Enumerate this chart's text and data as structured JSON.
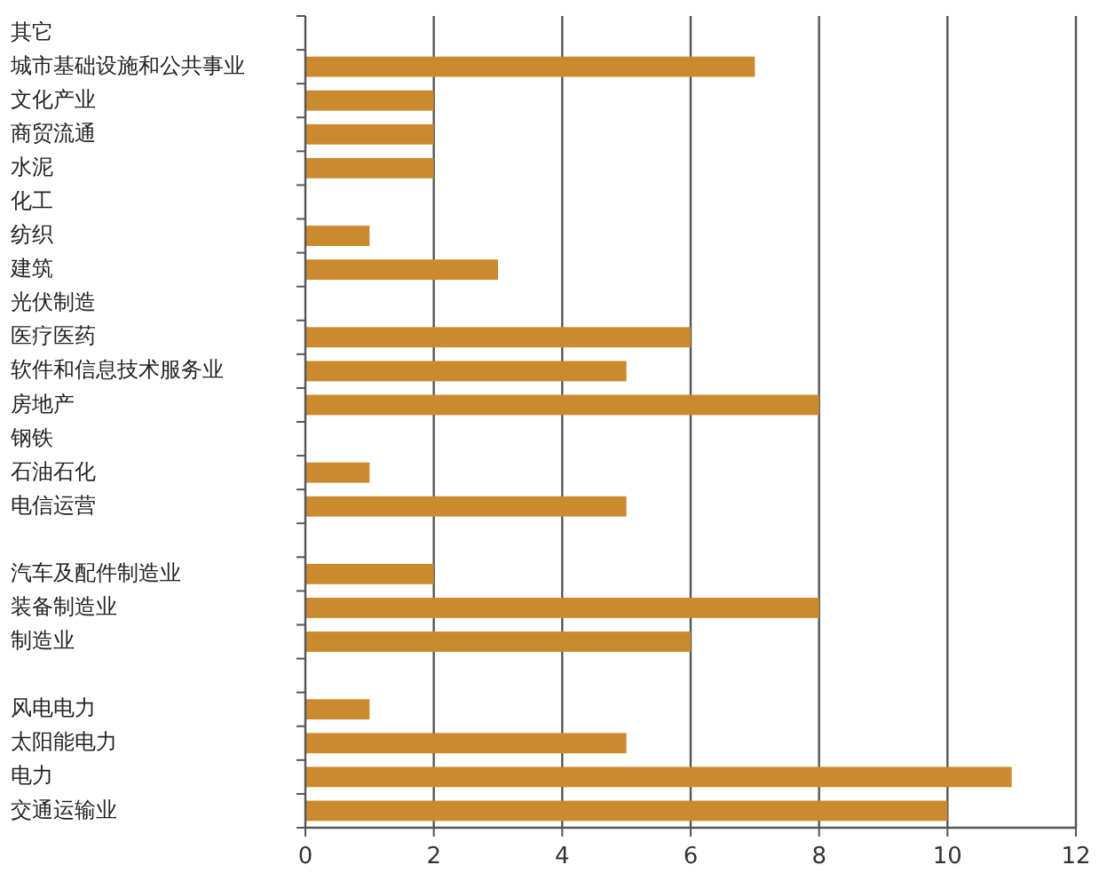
{
  "chart_data": {
    "type": "bar",
    "orientation": "horizontal",
    "categories": [
      "其它",
      "城市基础设施和公共事业",
      "文化产业",
      "商贸流通",
      "水泥",
      "化工",
      "纺织",
      "建筑",
      "光伏制造",
      "医疗医药",
      "软件和信息技术服务业",
      "房地产",
      "钢铁",
      "石油石化",
      "电信运营",
      null,
      "汽车及配件制造业",
      "装备制造业",
      "制造业",
      null,
      "风电电力",
      "太阳能电力",
      "电力",
      "交通运输业"
    ],
    "values": [
      0,
      7,
      2,
      2,
      2,
      0,
      1,
      3,
      0,
      6,
      5,
      8,
      0,
      1,
      5,
      null,
      2,
      8,
      6,
      null,
      1,
      5,
      11,
      10
    ],
    "color": "#cc8a2e",
    "xlim": [
      0,
      12
    ],
    "xticks": [
      0,
      2,
      4,
      6,
      8,
      10,
      12
    ],
    "grid": "x"
  }
}
